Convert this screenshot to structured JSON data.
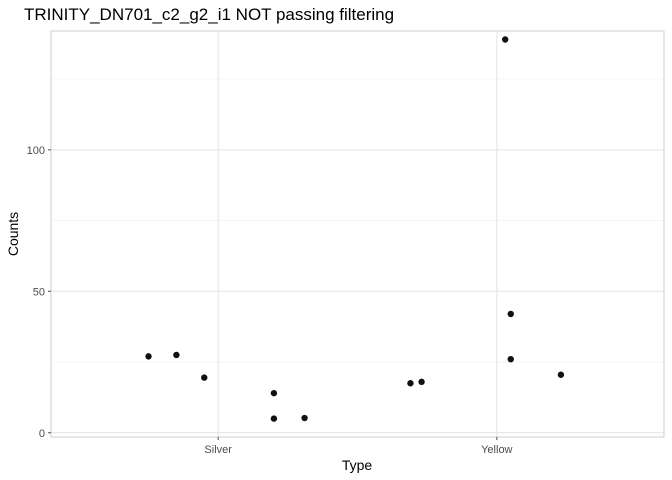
{
  "chart_data": {
    "type": "scatter",
    "title": "TRINITY_DN701_c2_g2_i1 NOT passing filtering",
    "xlabel": "Type",
    "ylabel": "Counts",
    "categories": [
      "Silver",
      "Yellow"
    ],
    "y_ticks": [
      "0",
      "50",
      "100"
    ],
    "grid": true,
    "points": [
      {
        "category": "Silver",
        "jitter": -0.25,
        "y": 27
      },
      {
        "category": "Silver",
        "jitter": -0.15,
        "y": 27.5
      },
      {
        "category": "Silver",
        "jitter": -0.05,
        "y": 19.5
      },
      {
        "category": "Silver",
        "jitter": 0.2,
        "y": 14
      },
      {
        "category": "Silver",
        "jitter": 0.2,
        "y": 5
      },
      {
        "category": "Silver",
        "jitter": 0.31,
        "y": 5.2
      },
      {
        "category": "Yellow",
        "jitter": -0.31,
        "y": 17.5
      },
      {
        "category": "Yellow",
        "jitter": -0.27,
        "y": 18
      },
      {
        "category": "Yellow",
        "jitter": 0.03,
        "y": 139
      },
      {
        "category": "Yellow",
        "jitter": 0.05,
        "y": 42
      },
      {
        "category": "Yellow",
        "jitter": 0.05,
        "y": 26
      },
      {
        "category": "Yellow",
        "jitter": 0.23,
        "y": 20.5
      }
    ],
    "ylim": [
      -1.5,
      142
    ],
    "point_color": "#111111"
  }
}
